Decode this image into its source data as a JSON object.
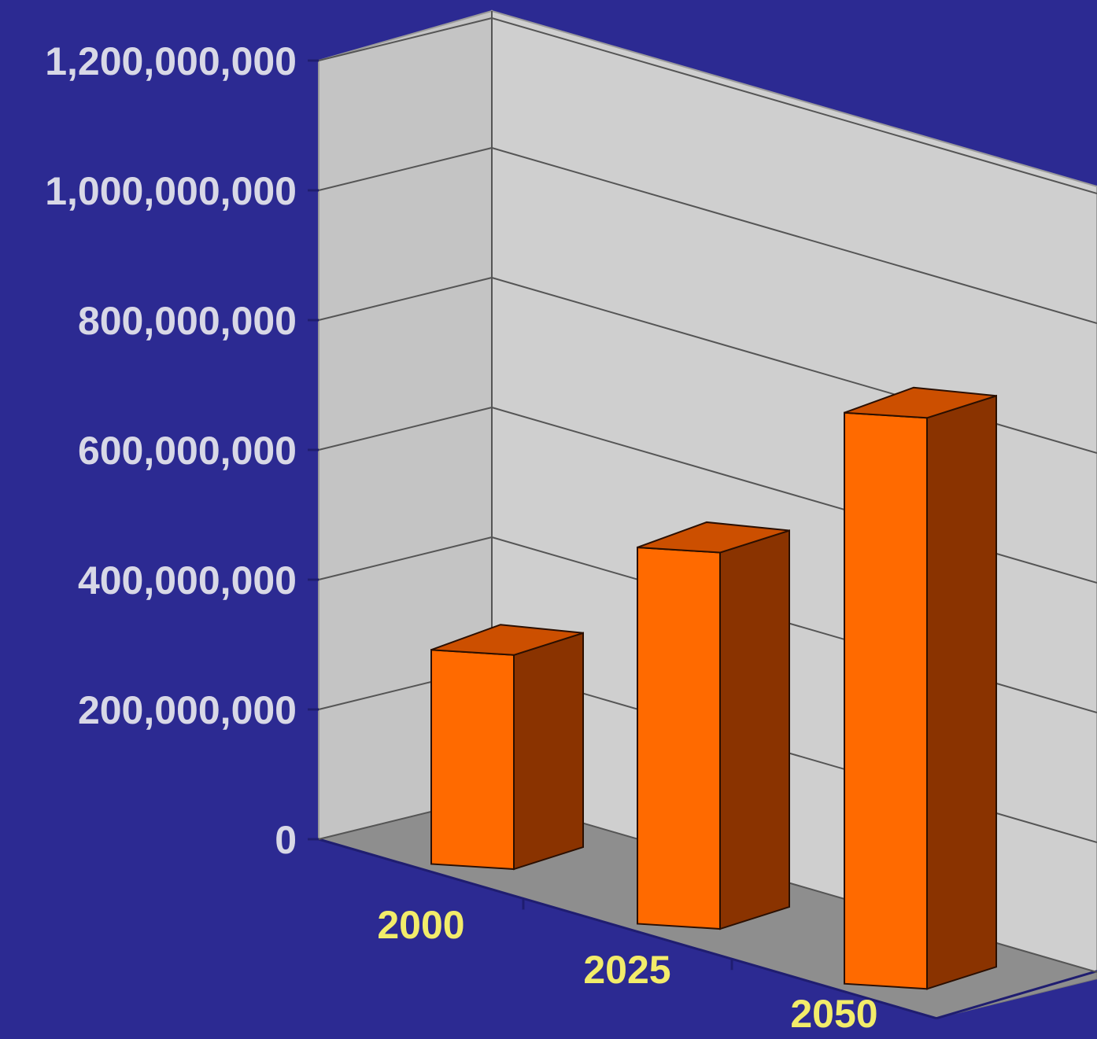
{
  "chart_data": {
    "type": "bar",
    "title": "",
    "xlabel": "",
    "ylabel": "",
    "categories": [
      "2000",
      "2025",
      "2050"
    ],
    "values": [
      330000000,
      580000000,
      880000000
    ],
    "ylim": [
      0,
      1200000000
    ],
    "y_ticks": [
      0,
      200000000,
      400000000,
      600000000,
      800000000,
      1000000000,
      1200000000
    ],
    "y_tick_labels": [
      "0",
      "200,000,000",
      "400,000,000",
      "600,000,000",
      "800,000,000",
      "1,000,000,000",
      "1,200,000,000"
    ],
    "grid": true,
    "three_d": true,
    "legend": "none"
  },
  "colors": {
    "background": "#2c2a92",
    "wall": "#cfcfcf",
    "side_wall": "#c4c4c4",
    "floor": "#8e8e8e",
    "bar_front": "#ff6a00",
    "bar_side": "#8a3300",
    "bar_top": "#cc4f00",
    "y_tick_text": "#d8d8e6",
    "x_tick_text": "#f2ec6a",
    "title_text": "#e23b3b"
  }
}
